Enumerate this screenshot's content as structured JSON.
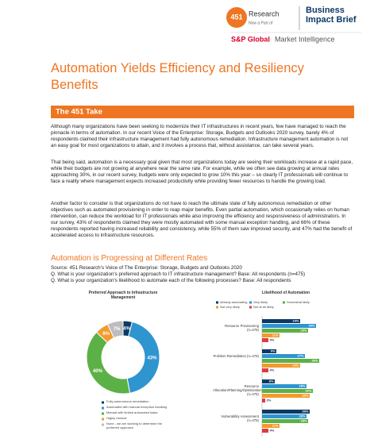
{
  "header": {
    "logo_number": "451",
    "logo_name": "Research",
    "logo_sub": "Now a Part of",
    "brief": "Business Impact Brief",
    "brand": "S&P Global",
    "brand_sub": "Market Intelligence"
  },
  "title": "Automation Yields Efficiency and Resiliency Benefits",
  "section_title": "The 451 Take",
  "paragraphs": [
    "Although many organizations have been seeking to modernize their IT infrastructures in recent years, few have managed to reach the pinnacle in terms of automation. In our recent Voice of the Enterprise: Storage, Budgets and Outlooks 2020 survey, barely 4% of respondents claimed their infrastructure management had fully autonomous remediation. Infrastructure management automation is not an easy goal for most organizations to attain, and it involves a process that, without assistance, can take several years.",
    "That being said, automation is a necessary goal given that most organizations today are seeing their workloads increase at a rapid pace, while their budgets are not growing at anywhere near the same rate. For example, while we often see data growing at annual rates approaching 30%, in our recent survey, budgets were only expected to grow 10% this year – so clearly IT professionals will continue to face a reality where management expects increased productivity while providing fewer resources to handle the growing load.",
    "Another factor to consider is that organizations do not have to reach the ultimate state of fully autonomous remediation or other objectives such as automated provisioning in order to reap major benefits. Even partial automation, which occasionally relies on human intervention, can reduce the workload for IT professionals while also improving the efficiency and responsiveness of administrators. In our survey, 43% of respondents claimed they were mostly automated with some manual exception handling, and 66% of these respondents reported having increased reliability and consistency, while 55% of them saw improved security, and 47% had the benefit of accelerated access to infrastructure resources."
  ],
  "figure": {
    "title": "Automation is Progressing at Different Rates",
    "source": "Source: 451 Research's Voice of The Enterprise: Storage, Budgets and Outlooks 2020",
    "questions": [
      "Q. What is your organization's preferred approach to IT infrastructure management? Base: All respondents (n=475)",
      "Q. What is your organization's likelihood to automate each of the following processes? Base: All respondents"
    ]
  },
  "chart_data": [
    {
      "type": "pie",
      "donut": true,
      "title": "Preferred Approach to Infrastructure Management",
      "categories": [
        "Fully autonomous remediation",
        "Automated with manual exception handling",
        "Manual with limited automated tasks",
        "Highly manual",
        "None - we are working to determine the preferred approach"
      ],
      "values": [
        4,
        43,
        40,
        6,
        7
      ],
      "value_labels": [
        "4%",
        "43%",
        "40%",
        "6%",
        "7%"
      ],
      "colors": [
        "#0b3a66",
        "#2f95cf",
        "#5cb146",
        "#f39a2e",
        "#bdbdbd"
      ]
    },
    {
      "type": "bar",
      "orientation": "horizontal",
      "title": "Likelihood of Automation",
      "categories": [
        "Resource Provisioning (n=475)",
        "Problem Remediation (n=475)",
        "Resource Allocation/Planning/Optimization (n=475)",
        "Vulnerability Assessment (n=475)"
      ],
      "series": [
        {
          "name": "Already automating",
          "color": "#0b3a66",
          "values": [
            24,
            9,
            8,
            30
          ],
          "value_labels": [
            "24%",
            "9%",
            "8%",
            "30%"
          ]
        },
        {
          "name": "Very likely",
          "color": "#2f95cf",
          "values": [
            34,
            27,
            28,
            28
          ],
          "value_labels": [
            "34%",
            "27%",
            "28%",
            "28%"
          ]
        },
        {
          "name": "Somewhat likely",
          "color": "#5cb146",
          "values": [
            29,
            36,
            32,
            29
          ],
          "value_labels": [
            "29%",
            "36%",
            "32%",
            "29%"
          ]
        },
        {
          "name": "Not very likely",
          "color": "#f39a2e",
          "values": [
            11,
            24,
            30,
            11
          ],
          "value_labels": [
            "11%",
            "24%",
            "30%",
            "11%"
          ]
        },
        {
          "name": "Not at all likely",
          "color": "#e03a3e",
          "values": [
            4,
            4,
            2,
            4
          ],
          "value_labels": [
            "4%",
            "4%",
            "2%",
            "4%"
          ]
        }
      ]
    }
  ]
}
